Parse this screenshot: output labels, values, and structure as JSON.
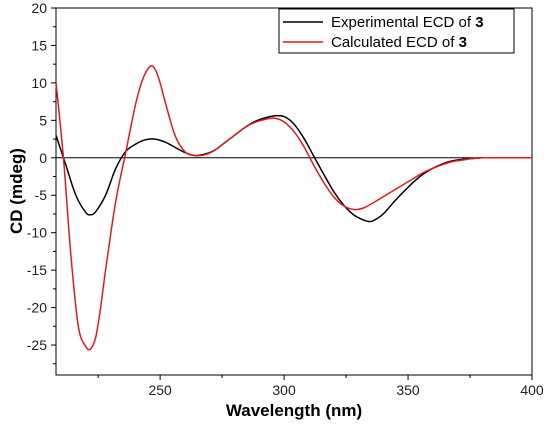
{
  "chart_data": {
    "type": "line",
    "xlabel": "Wavelength (nm)",
    "ylabel": "CD (mdeg)",
    "xlim": [
      208,
      400
    ],
    "ylim": [
      -29,
      20
    ],
    "x_ticks": [
      250,
      300,
      350,
      400
    ],
    "y_ticks": [
      20,
      15,
      10,
      5,
      0,
      -5,
      -10,
      -15,
      -20,
      -25
    ],
    "x_tick_labels": [
      "250",
      "300",
      "350",
      "400"
    ],
    "y_tick_labels": [
      "20",
      "15",
      "10",
      "5",
      "0",
      "-5",
      "-10",
      "-15",
      "-20",
      "-25"
    ],
    "zero_line": true,
    "grid": false,
    "legend_position": "top-right",
    "series": [
      {
        "name": "Experimental ECD of 3",
        "legend_text": "Experimental ECD of ",
        "legend_bold": "3",
        "color": "#000000",
        "x": [
          208,
          212,
          216,
          220,
          222,
          224,
          228,
          232,
          236,
          240,
          244,
          248,
          252,
          256,
          260,
          264,
          268,
          272,
          276,
          280,
          284,
          288,
          292,
          296,
          300,
          304,
          308,
          312,
          316,
          320,
          324,
          328,
          332,
          334,
          336,
          340,
          344,
          348,
          352,
          356,
          360,
          364,
          368,
          372,
          376,
          380,
          384,
          388,
          392,
          396,
          400
        ],
        "y": [
          3,
          -1,
          -5,
          -7.3,
          -7.6,
          -7.2,
          -5,
          -1.5,
          0.8,
          1.8,
          2.4,
          2.5,
          2.1,
          1.4,
          0.7,
          0.3,
          0.5,
          1,
          2,
          3,
          4,
          4.8,
          5.3,
          5.6,
          5.5,
          4.5,
          2.6,
          0.2,
          -2.2,
          -4.5,
          -6.3,
          -7.6,
          -8.3,
          -8.5,
          -8.4,
          -7.5,
          -6,
          -4.6,
          -3.3,
          -2.2,
          -1.4,
          -0.8,
          -0.4,
          -0.2,
          -0.1,
          0,
          0,
          0,
          0,
          0,
          0
        ]
      },
      {
        "name": "Calculated ECD of 3",
        "legend_text": "Calculated ECD of ",
        "legend_bold": "3",
        "color": "#e41a1a",
        "x": [
          208,
          211,
          214,
          217,
          220,
          222,
          224,
          226,
          228,
          232,
          236,
          240,
          243,
          246,
          248,
          250,
          252,
          256,
          260,
          264,
          268,
          272,
          276,
          280,
          284,
          288,
          292,
          296,
          300,
          304,
          308,
          312,
          316,
          320,
          324,
          328,
          332,
          336,
          340,
          344,
          348,
          352,
          356,
          360,
          364,
          368,
          372,
          376,
          380,
          384,
          388,
          392,
          396,
          400
        ],
        "y": [
          10,
          0,
          -13,
          -22.5,
          -25.2,
          -25.5,
          -24,
          -20,
          -15,
          -6,
          0.5,
          7,
          10.5,
          12.2,
          11.8,
          10,
          7.5,
          3,
          0.8,
          0.3,
          0.4,
          1,
          2,
          3,
          4,
          4.7,
          5.1,
          5.3,
          4.8,
          3.5,
          1.5,
          -1,
          -3.3,
          -5.2,
          -6.4,
          -6.9,
          -6.7,
          -6,
          -5.2,
          -4.4,
          -3.6,
          -2.8,
          -2,
          -1.4,
          -0.9,
          -0.5,
          -0.3,
          -0.1,
          0,
          0,
          0,
          0,
          0,
          0
        ]
      }
    ]
  }
}
